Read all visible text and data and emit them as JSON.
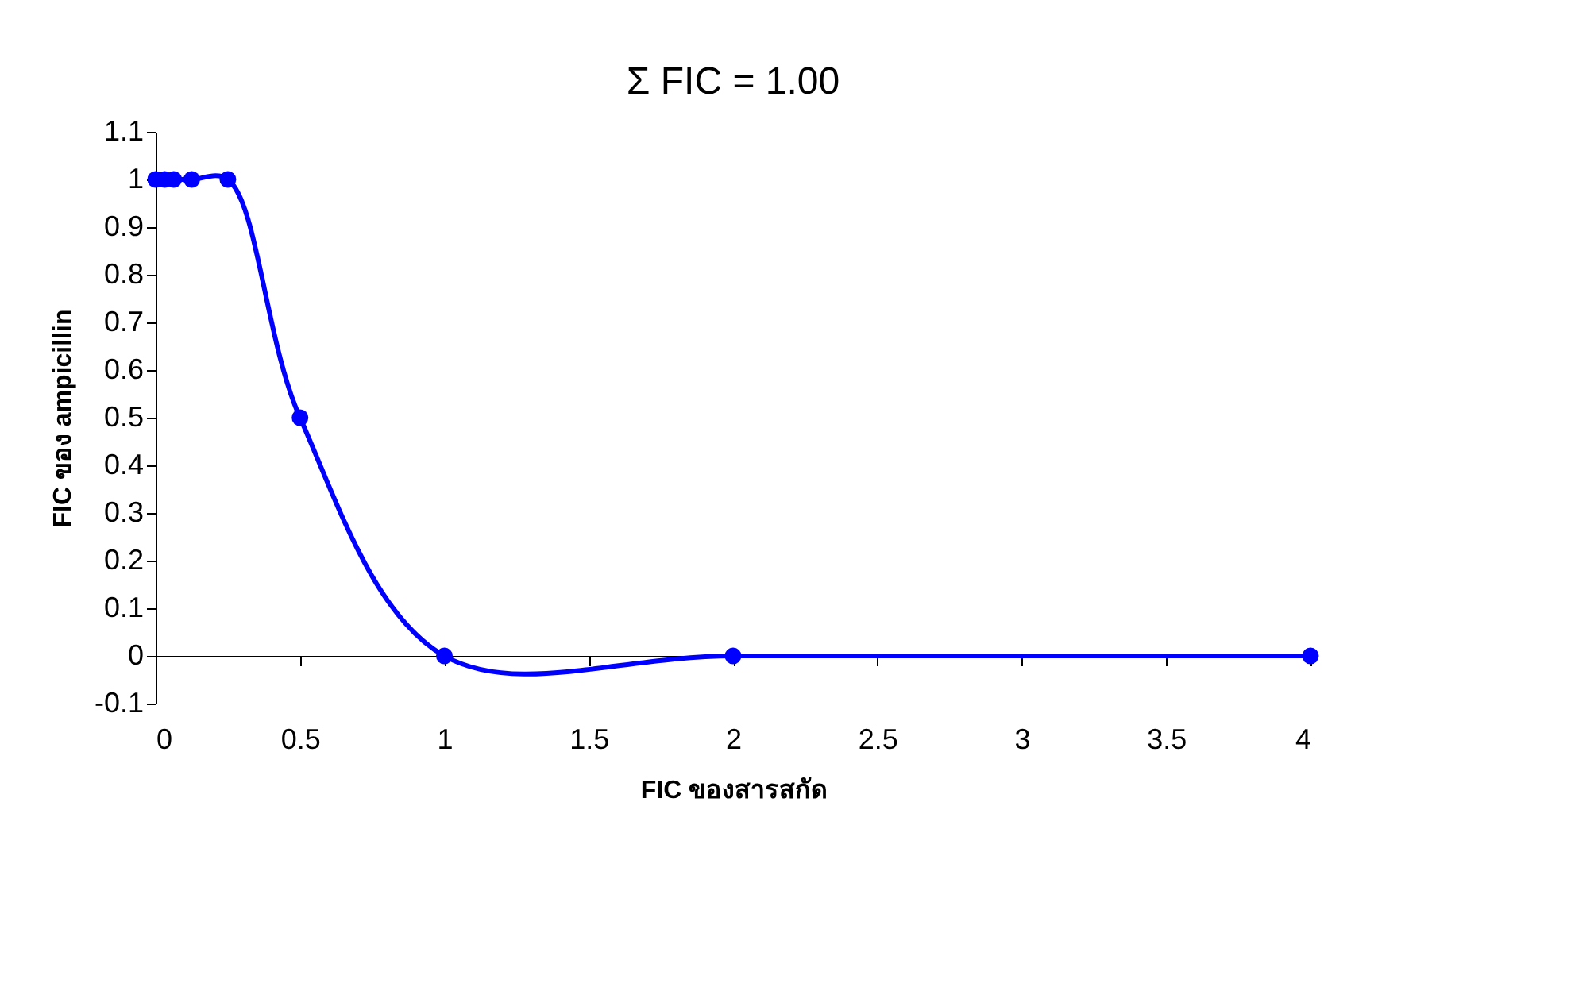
{
  "chart_data": {
    "type": "line",
    "title": "Σ FIC = 1.00",
    "xlabel": "FIC ของสารสกัด",
    "ylabel": "FIC ของ ampicillin",
    "x": [
      0,
      0.03125,
      0.0625,
      0.125,
      0.25,
      0.5,
      1,
      2,
      4
    ],
    "series": [
      {
        "color": "#0000ff",
        "values": [
          1,
          1,
          1,
          1,
          1,
          0.5,
          0,
          0,
          0
        ]
      }
    ],
    "xlim": [
      0,
      4
    ],
    "xticks": [
      0,
      0.5,
      1,
      1.5,
      2,
      2.5,
      3,
      3.5,
      4
    ],
    "ylim": [
      -0.1,
      1.1
    ],
    "yticks": [
      -0.1,
      0,
      0.1,
      0.2,
      0.3,
      0.4,
      0.5,
      0.6,
      0.7,
      0.8,
      0.9,
      1,
      1.1
    ],
    "grid": false,
    "marker": "circle",
    "line_style": "solid"
  }
}
